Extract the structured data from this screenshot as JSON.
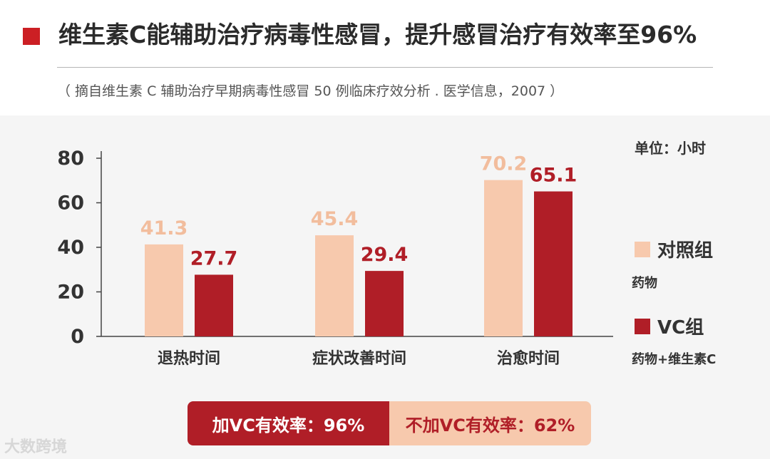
{
  "title": "维生素C能辅助治疗病毒性感冒，提升感冒治疗有效率至96%",
  "source": "（ 摘自维生素 C 辅助治疗早期病毒性感冒 50 例临床疗效分析 . 医学信息，2007 ）",
  "unit_label": "单位：小时",
  "legend": {
    "control_label": "对照组",
    "control_sub": "药物",
    "vc_label": "VC组",
    "vc_sub": "药物+维生素C"
  },
  "rates": {
    "with_vc": "加VC有效率：96%",
    "without_vc": "不加VC有效率：62%"
  },
  "watermark": "大数跨境",
  "colors": {
    "accent": "#cc1f24",
    "control": "#f7c9ad",
    "vc": "#b01e27",
    "control_label_text": "#f2bd9d",
    "vc_label_text": "#b01e27"
  },
  "chart_data": {
    "type": "bar",
    "categories": [
      "退热时间",
      "症状改善时间",
      "治愈时间"
    ],
    "series": [
      {
        "name": "对照组",
        "values": [
          41.3,
          45.4,
          70.2
        ]
      },
      {
        "name": "VC组",
        "values": [
          27.7,
          29.4,
          65.1
        ]
      }
    ],
    "y_ticks": [
      0,
      20,
      40,
      60,
      80
    ],
    "ylim": [
      0,
      80
    ],
    "legend_position": "right",
    "grid": false
  }
}
